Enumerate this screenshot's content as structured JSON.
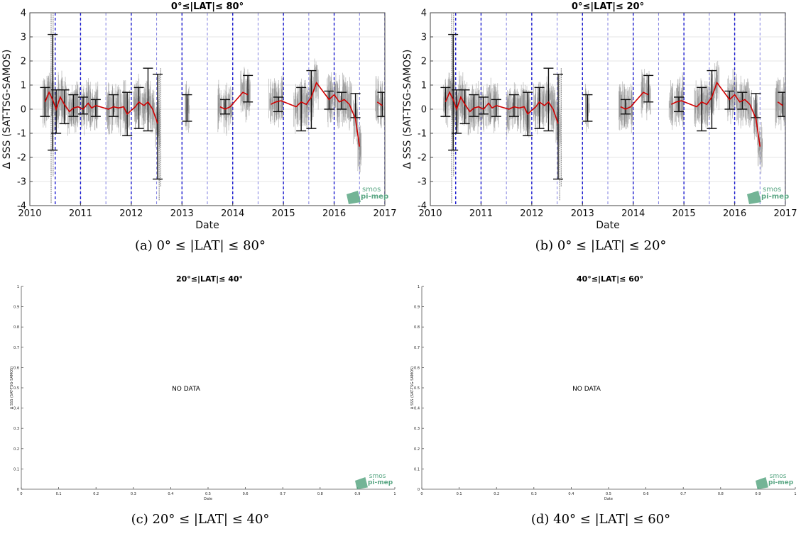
{
  "chart_data": [
    {
      "type": "scatter",
      "title": "0°≤|LAT|≤ 80°",
      "caption": "(a) 0° ≤ |LAT| ≤ 80°",
      "xlabel": "Date",
      "ylabel": "Δ SSS (SAT-TSG-SAMOS)",
      "xlim": [
        "2010",
        "2017"
      ],
      "ylim": [
        -4,
        4
      ],
      "xticks": [
        "2010",
        "2011",
        "2012",
        "2013",
        "2014",
        "2015",
        "2016",
        "2017"
      ],
      "yticks": [
        "-4",
        "-3",
        "-2",
        "-1",
        "0",
        "1",
        "2",
        "3",
        "4"
      ],
      "grid": true,
      "logo": "smos pi-mep",
      "series": [
        {
          "color": "#d00000",
          "x": [
            2010.3,
            2010.38,
            2010.45,
            2010.52,
            2010.6,
            2010.68,
            2010.78,
            2010.86,
            2010.95,
            2011.05,
            2011.15,
            2011.22,
            2011.3,
            2011.55,
            2011.65,
            2011.75,
            2011.85,
            2011.92,
            2012.08,
            2012.15,
            2012.25,
            2012.33,
            2012.42,
            2012.52,
            2013.1,
            2013.75,
            2013.85,
            2013.95,
            2014.2,
            2014.3,
            2014.75,
            2014.85,
            2014.95,
            2015.25,
            2015.35,
            2015.45,
            2015.55,
            2015.65,
            2015.9,
            2016.0,
            2016.1,
            2016.2,
            2016.3,
            2016.42,
            2016.5,
            2016.85,
            2016.95
          ],
          "y": [
            0.3,
            0.7,
            0.4,
            0.0,
            0.5,
            0.2,
            -0.1,
            0.05,
            0.1,
            0.0,
            0.25,
            0.05,
            0.15,
            0.0,
            0.1,
            0.05,
            0.1,
            -0.2,
            0.1,
            0.3,
            0.15,
            0.3,
            0.0,
            -0.6,
            0.1,
            0.1,
            0.0,
            0.1,
            0.7,
            0.6,
            0.2,
            0.3,
            0.35,
            0.1,
            0.3,
            0.2,
            0.5,
            1.1,
            0.4,
            0.6,
            0.3,
            0.4,
            0.2,
            -0.4,
            -1.55,
            0.3,
            0.15
          ]
        }
      ],
      "errorbars": {
        "x": [
          2010.3,
          2010.45,
          2010.52,
          2010.68,
          2010.86,
          2011.05,
          2011.3,
          2011.65,
          2011.92,
          2012.15,
          2012.33,
          2012.52,
          2013.1,
          2013.85,
          2014.3,
          2014.9,
          2015.35,
          2015.55,
          2015.9,
          2016.15,
          2016.42,
          2016.95
        ],
        "low": [
          -0.3,
          -1.7,
          -1.0,
          -0.6,
          -0.3,
          -0.2,
          -0.3,
          -0.3,
          -1.1,
          -0.8,
          -0.9,
          -2.9,
          -0.5,
          -0.2,
          0.3,
          -0.1,
          -0.9,
          -0.8,
          0.0,
          0.0,
          -0.35,
          -0.3
        ],
        "high": [
          0.9,
          3.1,
          0.8,
          0.8,
          0.6,
          0.5,
          0.4,
          0.6,
          0.7,
          0.9,
          1.7,
          1.45,
          0.6,
          0.4,
          1.4,
          0.5,
          0.9,
          1.6,
          0.75,
          0.7,
          0.65,
          0.7
        ]
      },
      "vlines_dashed_bold": [
        "2010.5",
        "2011",
        "2012",
        "2013",
        "2014",
        "2015",
        "2016",
        "2017"
      ],
      "vlines_dashed_light": [
        "2011.5",
        "2012.5",
        "2013.5",
        "2014.5",
        "2015.5",
        "2016.5"
      ]
    },
    {
      "type": "scatter",
      "title": "0°≤|LAT|≤ 20°",
      "caption": "(b) 0° ≤ |LAT| ≤ 20°",
      "xlabel": "Date",
      "ylabel": "Δ SSS (SAT-TSG-SAMOS)",
      "xlim": [
        "2010",
        "2017"
      ],
      "ylim": [
        -4,
        4
      ],
      "xticks": [
        "2010",
        "2011",
        "2012",
        "2013",
        "2014",
        "2015",
        "2016",
        "2017"
      ],
      "yticks": [
        "-4",
        "-3",
        "-2",
        "-1",
        "0",
        "1",
        "2",
        "3",
        "4"
      ],
      "grid": true,
      "logo": "smos pi-mep",
      "series": [
        {
          "color": "#d00000",
          "x": [
            2010.3,
            2010.38,
            2010.45,
            2010.52,
            2010.6,
            2010.68,
            2010.78,
            2010.86,
            2010.95,
            2011.05,
            2011.15,
            2011.22,
            2011.3,
            2011.55,
            2011.65,
            2011.75,
            2011.85,
            2011.92,
            2012.08,
            2012.15,
            2012.25,
            2012.33,
            2012.42,
            2012.52,
            2013.1,
            2013.75,
            2013.85,
            2013.95,
            2014.2,
            2014.3,
            2014.75,
            2014.85,
            2014.95,
            2015.25,
            2015.35,
            2015.45,
            2015.55,
            2015.65,
            2015.9,
            2016.0,
            2016.1,
            2016.2,
            2016.3,
            2016.42,
            2016.5,
            2016.85,
            2016.95
          ],
          "y": [
            0.3,
            0.7,
            0.4,
            0.0,
            0.5,
            0.2,
            -0.1,
            0.05,
            0.1,
            0.0,
            0.25,
            0.05,
            0.15,
            0.0,
            0.1,
            0.05,
            0.1,
            -0.2,
            0.1,
            0.3,
            0.15,
            0.3,
            0.0,
            -0.6,
            0.1,
            0.1,
            0.0,
            0.1,
            0.7,
            0.6,
            0.2,
            0.3,
            0.35,
            0.1,
            0.3,
            0.2,
            0.5,
            1.1,
            0.4,
            0.6,
            0.3,
            0.4,
            0.2,
            -0.4,
            -1.55,
            0.3,
            0.15
          ]
        }
      ],
      "errorbars": {
        "x": [
          2010.3,
          2010.45,
          2010.52,
          2010.68,
          2010.86,
          2011.05,
          2011.3,
          2011.65,
          2011.92,
          2012.15,
          2012.33,
          2012.52,
          2013.1,
          2013.85,
          2014.3,
          2014.9,
          2015.35,
          2015.55,
          2015.9,
          2016.15,
          2016.42,
          2016.95
        ],
        "low": [
          -0.3,
          -1.7,
          -1.0,
          -0.6,
          -0.3,
          -0.2,
          -0.3,
          -0.3,
          -1.1,
          -0.8,
          -0.9,
          -2.9,
          -0.5,
          -0.2,
          0.3,
          -0.1,
          -0.9,
          -0.8,
          0.0,
          0.0,
          -0.35,
          -0.3
        ],
        "high": [
          0.9,
          3.1,
          0.8,
          0.8,
          0.6,
          0.5,
          0.4,
          0.6,
          0.7,
          0.9,
          1.7,
          1.45,
          0.6,
          0.4,
          1.4,
          0.5,
          0.9,
          1.6,
          0.75,
          0.7,
          0.65,
          0.7
        ]
      },
      "vlines_dashed_bold": [
        "2010.5",
        "2011",
        "2012",
        "2013",
        "2014",
        "2015",
        "2016",
        "2017"
      ],
      "vlines_dashed_light": [
        "2011.5",
        "2012.5",
        "2013.5",
        "2014.5",
        "2015.5",
        "2016.5"
      ]
    },
    {
      "type": "scatter",
      "title": "20°≤|LAT|≤ 40°",
      "caption": "(c) 20° ≤ |LAT| ≤ 40°",
      "xlabel": "Date",
      "ylabel": "Δ SSS (SAT-TSG-SAMOS)",
      "xlim": [
        0,
        1
      ],
      "ylim": [
        0,
        1
      ],
      "xticks": [
        "0",
        "0.1",
        "0.2",
        "0.3",
        "0.4",
        "0.5",
        "0.6",
        "0.7",
        "0.8",
        "0.9",
        "1"
      ],
      "yticks": [
        "0",
        "0.1",
        "0.2",
        "0.3",
        "0.4",
        "0.5",
        "0.6",
        "0.7",
        "0.8",
        "0.9",
        "1"
      ],
      "grid": false,
      "annotation": "NO DATA",
      "logo": "smos pi-mep",
      "series": []
    },
    {
      "type": "scatter",
      "title": "40°≤|LAT|≤ 60°",
      "caption": "(d) 40° ≤ |LAT| ≤ 60°",
      "xlabel": "Date",
      "ylabel": "Δ SSS (SAT-TSG-SAMOS)",
      "xlim": [
        0,
        1
      ],
      "ylim": [
        0,
        1
      ],
      "xticks": [
        "0",
        "0.1",
        "0.2",
        "0.3",
        "0.4",
        "0.5",
        "0.6",
        "0.7",
        "0.8",
        "0.9",
        "1"
      ],
      "yticks": [
        "0",
        "0.1",
        "0.2",
        "0.3",
        "0.4",
        "0.5",
        "0.6",
        "0.7",
        "0.8",
        "0.9",
        "1"
      ],
      "grid": false,
      "annotation": "NO DATA",
      "logo": "smos pi-mep",
      "series": []
    }
  ]
}
